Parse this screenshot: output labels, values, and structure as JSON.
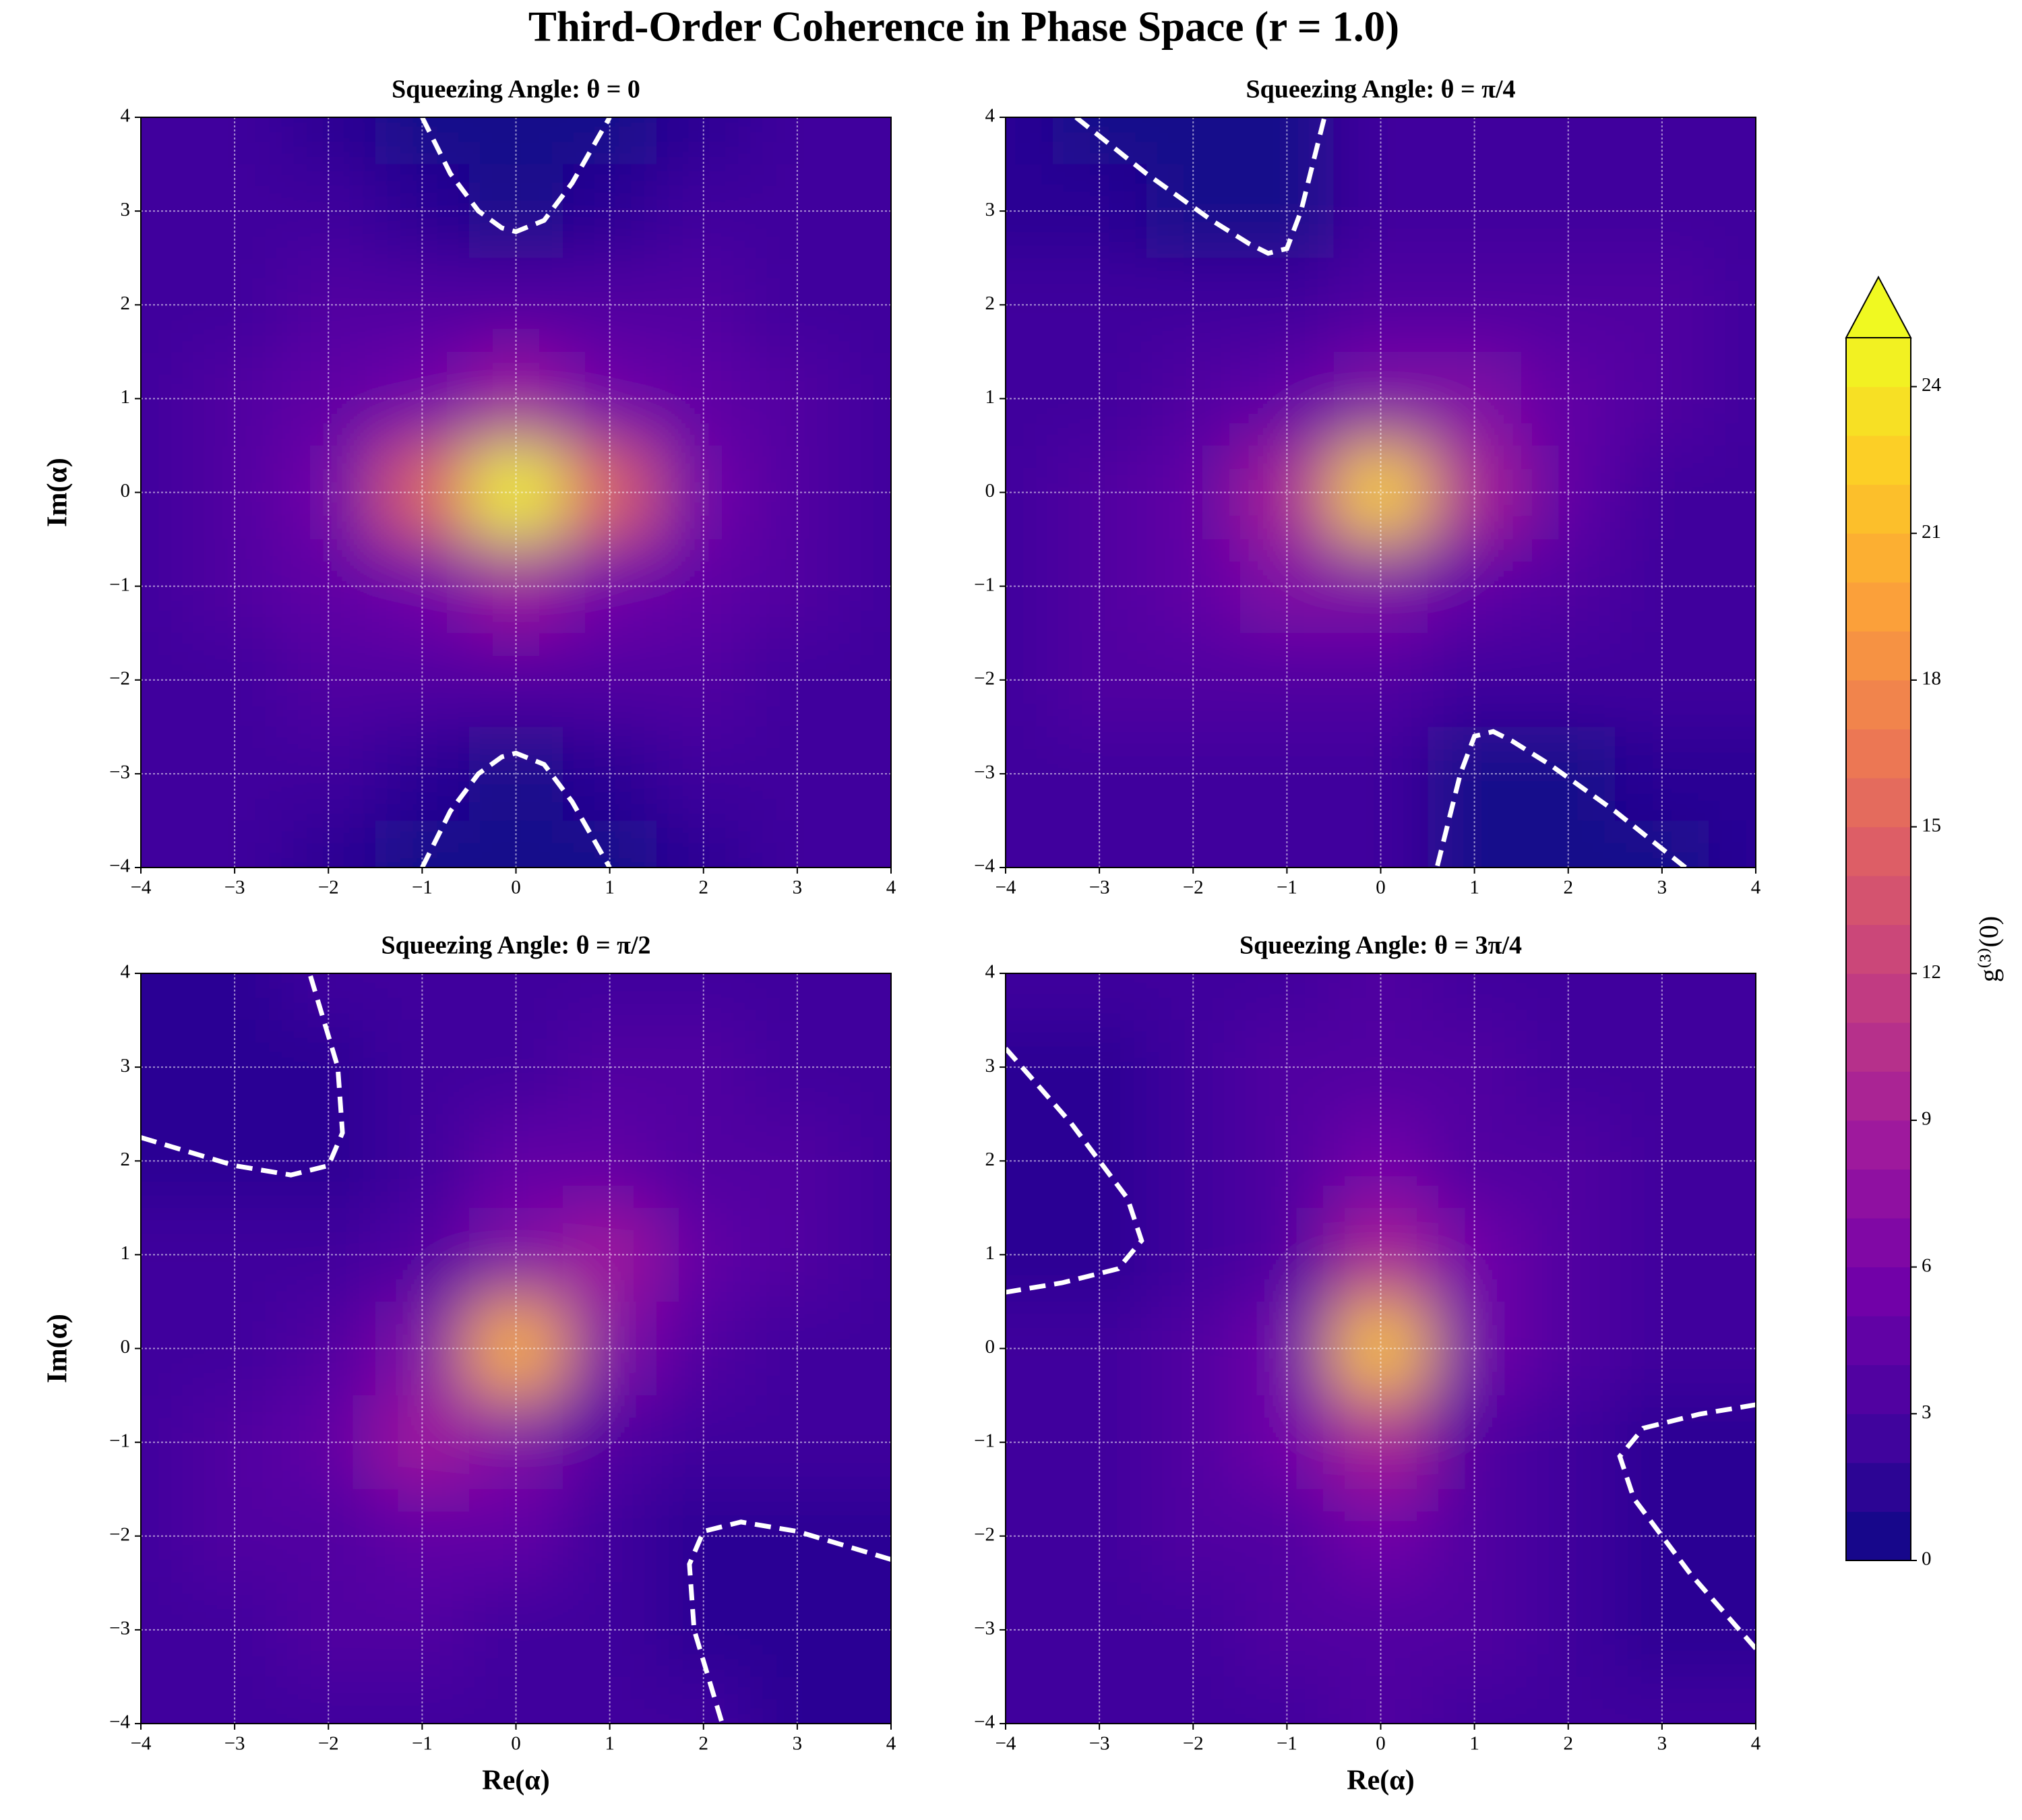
{
  "title": "Third-Order Coherence in Phase Space (r = 1.0)",
  "colorbar": {
    "label": "g⁽³⁾(0)",
    "clim": [
      0,
      25
    ],
    "extend": "max",
    "levels": [
      0,
      1,
      2,
      3,
      4,
      5,
      6,
      7,
      8,
      9,
      10,
      11,
      12,
      13,
      14,
      15,
      16,
      17,
      18,
      19,
      20,
      21,
      22,
      23,
      24,
      25
    ],
    "ticks": [
      0,
      3,
      6,
      9,
      12,
      15,
      18,
      21,
      24
    ],
    "colormap": [
      "#0d0887",
      "#46039f",
      "#7201a8",
      "#9c179e",
      "#bd3786",
      "#d8576b",
      "#ed7953",
      "#fb9f3a",
      "#fdca26",
      "#f0f921"
    ]
  },
  "chart_data": [
    {
      "type": "contourf",
      "title": "Squeezing Angle: θ = 0",
      "ylabel": "Im(α)",
      "x": [
        -4,
        -3,
        -2,
        -1,
        0,
        1,
        2,
        3,
        4
      ],
      "y": [
        -4,
        -3,
        -2,
        -1,
        0,
        1,
        2,
        3,
        4
      ],
      "z": [
        [
          2,
          2,
          1.5,
          0.8,
          0.5,
          0.8,
          1.5,
          2,
          2
        ],
        [
          2,
          2,
          2,
          1.5,
          0.9,
          1.5,
          2,
          2,
          2
        ],
        [
          2,
          2.5,
          3,
          3,
          3,
          3,
          3,
          2.5,
          2
        ],
        [
          2,
          3,
          4,
          5.5,
          8,
          5.5,
          4,
          3,
          2
        ],
        [
          2,
          3,
          5,
          14,
          24,
          14,
          5,
          3,
          2
        ],
        [
          2,
          3,
          4,
          5.5,
          8,
          5.5,
          4,
          3,
          2
        ],
        [
          2,
          2.5,
          3,
          3,
          3,
          3,
          3,
          2.5,
          2
        ],
        [
          2,
          2,
          2,
          1.5,
          0.9,
          1.5,
          2,
          2,
          2
        ],
        [
          2,
          2,
          1.5,
          0.8,
          0.5,
          0.8,
          1.5,
          2,
          2
        ]
      ],
      "contours": [
        {
          "x": [
            -1,
            -0.7,
            -0.4,
            -0.15,
            0,
            0.3,
            0.6,
            1
          ],
          "y": [
            4,
            3.4,
            3.0,
            2.82,
            2.78,
            2.9,
            3.3,
            4
          ]
        },
        {
          "x": [
            -1,
            -0.7,
            -0.4,
            -0.15,
            0,
            0.3,
            0.6,
            1
          ],
          "y": [
            -4,
            -3.4,
            -3.0,
            -2.82,
            -2.78,
            -2.9,
            -3.3,
            -4
          ]
        }
      ],
      "xlim": [
        -4,
        4
      ],
      "ylim": [
        -4,
        4
      ],
      "xticks": [
        {
          "value": -4,
          "label": "−4"
        },
        {
          "value": -3,
          "label": "−3"
        },
        {
          "value": -2,
          "label": "−2"
        },
        {
          "value": -1,
          "label": "−1"
        },
        0,
        1,
        2,
        3,
        4
      ],
      "yticks": [
        {
          "value": -4,
          "label": "−4"
        },
        {
          "value": -3,
          "label": "−3"
        },
        {
          "value": -2,
          "label": "−2"
        },
        {
          "value": -1,
          "label": "−1"
        },
        0,
        1,
        2,
        3,
        4
      ],
      "grid": true
    },
    {
      "type": "contourf",
      "title": "Squeezing Angle: θ = π/4",
      "x": [
        -4,
        -3,
        -2,
        -1,
        0,
        1,
        2,
        3,
        4
      ],
      "y": [
        -4,
        -3,
        -2,
        -1,
        0,
        1,
        2,
        3,
        4
      ],
      "z": [
        [
          2,
          2,
          2,
          2,
          2,
          0.8,
          0.6,
          0.6,
          1
        ],
        [
          2,
          2.5,
          2.5,
          2,
          2,
          0.9,
          0.8,
          1,
          1.5
        ],
        [
          2,
          3,
          3.5,
          3.5,
          3,
          2,
          2,
          2,
          2
        ],
        [
          2,
          3,
          4.5,
          6,
          6,
          4,
          3,
          2.5,
          2
        ],
        [
          2,
          3,
          4,
          9,
          22,
          9,
          4,
          2.5,
          2
        ],
        [
          2,
          2.5,
          3,
          4,
          6,
          6,
          4.5,
          3,
          2
        ],
        [
          2,
          2,
          2,
          2,
          3,
          3.5,
          3.5,
          3,
          2
        ],
        [
          1.5,
          1,
          0.8,
          0.9,
          2,
          2,
          2.5,
          2.5,
          2
        ],
        [
          1,
          0.6,
          0.6,
          0.8,
          2,
          2,
          2,
          2,
          2
        ]
      ],
      "contours": [
        {
          "x": [
            -3.25,
            -2.5,
            -1.8,
            -1.4,
            -1.2,
            -1,
            -0.85,
            -0.7,
            -0.6
          ],
          "y": [
            4,
            3.4,
            2.9,
            2.65,
            2.55,
            2.6,
            3.0,
            3.6,
            4
          ]
        },
        {
          "x": [
            3.25,
            2.5,
            1.8,
            1.4,
            1.2,
            1,
            0.85,
            0.7,
            0.6
          ],
          "y": [
            -4,
            -3.4,
            -2.9,
            -2.65,
            -2.55,
            -2.6,
            -3.0,
            -3.6,
            -4
          ]
        }
      ],
      "xlim": [
        -4,
        4
      ],
      "ylim": [
        -4,
        4
      ],
      "xticks": [
        {
          "value": -4,
          "label": "−4"
        },
        {
          "value": -3,
          "label": "−3"
        },
        {
          "value": -2,
          "label": "−2"
        },
        {
          "value": -1,
          "label": "−1"
        },
        0,
        1,
        2,
        3,
        4
      ],
      "yticks": [
        {
          "value": -4,
          "label": "−4"
        },
        {
          "value": -3,
          "label": "−3"
        },
        {
          "value": -2,
          "label": "−2"
        },
        {
          "value": -1,
          "label": "−1"
        },
        0,
        1,
        2,
        3,
        4
      ],
      "grid": true
    },
    {
      "type": "contourf",
      "title": "Squeezing Angle: θ = π/2",
      "xlabel": "Re(α)",
      "ylabel": "Im(α)",
      "x": [
        -4,
        -3,
        -2,
        -1,
        0,
        1,
        2,
        3,
        4
      ],
      "y": [
        -4,
        -3,
        -2,
        -1,
        0,
        1,
        2,
        3,
        4
      ],
      "z": [
        [
          2,
          2,
          2,
          2,
          2,
          2,
          2,
          1,
          1
        ],
        [
          2,
          2.5,
          3,
          3,
          2.5,
          2,
          1.5,
          1,
          1
        ],
        [
          2,
          3,
          3.5,
          4,
          4,
          2,
          1.5,
          1.5,
          1.5
        ],
        [
          2,
          3,
          4,
          8,
          6,
          3,
          2.5,
          2,
          2
        ],
        [
          2,
          2.5,
          3,
          6,
          20,
          6,
          3,
          2.5,
          2
        ],
        [
          2,
          2,
          2.5,
          3,
          6,
          8,
          4,
          3,
          2
        ],
        [
          1.5,
          1.5,
          1.5,
          2,
          4,
          4,
          3.5,
          3,
          2
        ],
        [
          1,
          1,
          1.5,
          2,
          2.5,
          3,
          3,
          2.5,
          2
        ],
        [
          1,
          1,
          2,
          2,
          2,
          2,
          2,
          2,
          2
        ]
      ],
      "contours": [
        {
          "x": [
            -4,
            -3,
            -2.4,
            -2,
            -1.85,
            -1.9,
            -2.2
          ],
          "y": [
            2.25,
            1.95,
            1.85,
            1.95,
            2.3,
            3,
            4
          ]
        },
        {
          "x": [
            4,
            3,
            2.4,
            2,
            1.85,
            1.9,
            2.2
          ],
          "y": [
            -2.25,
            -1.95,
            -1.85,
            -1.95,
            -2.3,
            -3,
            -4
          ]
        }
      ],
      "xlim": [
        -4,
        4
      ],
      "ylim": [
        -4,
        4
      ],
      "xticks": [
        {
          "value": -4,
          "label": "−4"
        },
        {
          "value": -3,
          "label": "−3"
        },
        {
          "value": -2,
          "label": "−2"
        },
        {
          "value": -1,
          "label": "−1"
        },
        0,
        1,
        2,
        3,
        4
      ],
      "yticks": [
        {
          "value": -4,
          "label": "−4"
        },
        {
          "value": -3,
          "label": "−3"
        },
        {
          "value": -2,
          "label": "−2"
        },
        {
          "value": -1,
          "label": "−1"
        },
        0,
        1,
        2,
        3,
        4
      ],
      "grid": true
    },
    {
      "type": "contourf",
      "title": "Squeezing Angle: θ = 3π/4",
      "xlabel": "Re(α)",
      "x": [
        -4,
        -3,
        -2,
        -1,
        0,
        1,
        2,
        3,
        4
      ],
      "y": [
        -4,
        -3,
        -2,
        -1,
        0,
        1,
        2,
        3,
        4
      ],
      "z": [
        [
          2,
          2,
          2,
          2.5,
          3,
          2,
          2,
          2,
          2
        ],
        [
          2,
          2,
          2.5,
          3,
          3.5,
          3,
          2,
          1.5,
          1
        ],
        [
          2,
          2,
          3,
          3.5,
          5,
          3,
          2,
          1,
          1
        ],
        [
          2,
          2.5,
          3,
          5,
          9,
          3.5,
          2.5,
          1.5,
          1.5
        ],
        [
          2,
          2.5,
          3,
          5,
          21,
          5,
          3,
          2.5,
          2
        ],
        [
          1.5,
          1.5,
          2.5,
          3.5,
          9,
          5,
          3,
          2.5,
          2
        ],
        [
          1,
          1,
          2,
          3,
          5,
          3.5,
          3,
          2,
          2
        ],
        [
          1,
          1.5,
          2,
          3,
          3.5,
          3,
          2.5,
          2,
          2
        ],
        [
          2,
          2,
          2,
          2,
          3,
          2.5,
          2,
          2,
          2
        ]
      ],
      "contours": [
        {
          "x": [
            -4,
            -3.3,
            -2.7,
            -2.55,
            -2.8,
            -3.4,
            -4
          ],
          "y": [
            3.2,
            2.4,
            1.6,
            1.15,
            0.85,
            0.7,
            0.6
          ]
        },
        {
          "x": [
            4,
            3.3,
            2.7,
            2.55,
            2.8,
            3.4,
            4
          ],
          "y": [
            -3.2,
            -2.4,
            -1.6,
            -1.15,
            -0.85,
            -0.7,
            -0.6
          ]
        }
      ],
      "xlim": [
        -4,
        4
      ],
      "ylim": [
        -4,
        4
      ],
      "xticks": [
        {
          "value": -4,
          "label": "−4"
        },
        {
          "value": -3,
          "label": "−3"
        },
        {
          "value": -2,
          "label": "−2"
        },
        {
          "value": -1,
          "label": "−1"
        },
        0,
        1,
        2,
        3,
        4
      ],
      "yticks": [
        {
          "value": -4,
          "label": "−4"
        },
        {
          "value": -3,
          "label": "−3"
        },
        {
          "value": -2,
          "label": "−2"
        },
        {
          "value": -1,
          "label": "−1"
        },
        0,
        1,
        2,
        3,
        4
      ],
      "grid": true
    }
  ]
}
